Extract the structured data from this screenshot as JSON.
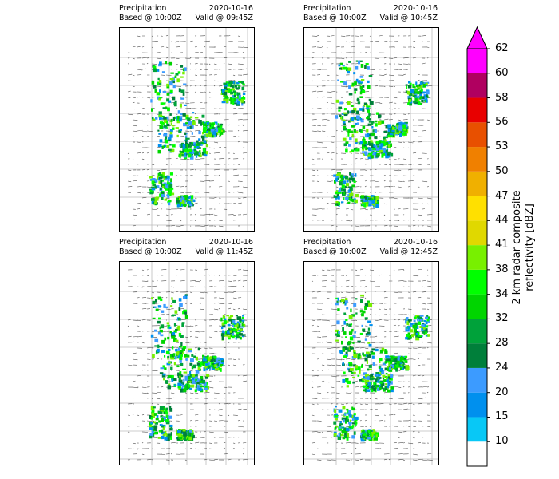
{
  "chart_data": {
    "type": "heatmap",
    "description_layout": "2x2 grid of precipitation radar maps with shared colorbar",
    "panels": [
      {
        "title_left": "Precipitation",
        "based": "Based @ 10:00Z",
        "date": "2020-10-16",
        "valid": "Valid @ 09:45Z"
      },
      {
        "title_left": "Precipitation",
        "based": "Based @ 10:00Z",
        "date": "2020-10-16",
        "valid": "Valid @ 10:45Z"
      },
      {
        "title_left": "Precipitation",
        "based": "Based @ 10:00Z",
        "date": "2020-10-16",
        "valid": "Valid @ 11:45Z"
      },
      {
        "title_left": "Precipitation",
        "based": "Based @ 10:00Z",
        "date": "2020-10-16",
        "valid": "Valid @ 12:45Z"
      }
    ],
    "colorbar": {
      "label_line1": "2 km radar composite",
      "label_line2": "reflectivity [dBZ]",
      "levels": [
        10,
        15,
        20,
        24,
        28,
        32,
        34,
        38,
        41,
        44,
        47,
        50,
        53,
        56,
        58,
        60,
        62
      ],
      "colors": [
        "#ffffff",
        "#08c8f6",
        "#0090ee",
        "#3c9bff",
        "#007f3a",
        "#00a23a",
        "#00d500",
        "#00ff00",
        "#78f000",
        "#e0d800",
        "#ffe000",
        "#f0b000",
        "#f08000",
        "#e85000",
        "#e80000",
        "#b00060",
        "#ff00ff"
      ],
      "extend": "max"
    }
  }
}
